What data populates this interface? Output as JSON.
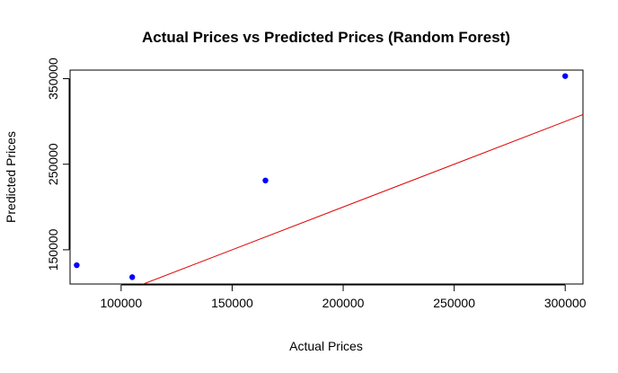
{
  "chart_data": {
    "type": "scatter",
    "title": "Actual Prices vs Predicted Prices (Random Forest)",
    "xlabel": "Actual Prices",
    "ylabel": "Predicted Prices",
    "xlim": [
      77000,
      308000
    ],
    "ylim": [
      110000,
      360000
    ],
    "x_ticks": [
      100000,
      150000,
      200000,
      250000,
      300000
    ],
    "y_ticks": [
      150000,
      250000,
      350000
    ],
    "x_tick_labels": [
      "100000",
      "150000",
      "200000",
      "250000",
      "300000"
    ],
    "y_tick_labels": [
      "150000",
      "250000",
      "350000"
    ],
    "grid": false,
    "legend": "none",
    "points": [
      {
        "x": 80000,
        "y": 132000
      },
      {
        "x": 105000,
        "y": 118000
      },
      {
        "x": 165000,
        "y": 231000
      },
      {
        "x": 300000,
        "y": 353000
      }
    ],
    "reference_line": {
      "type": "y = x",
      "slope": 1,
      "intercept": 0
    },
    "point_color": "#0000ff",
    "line_color": "#dd0000"
  }
}
